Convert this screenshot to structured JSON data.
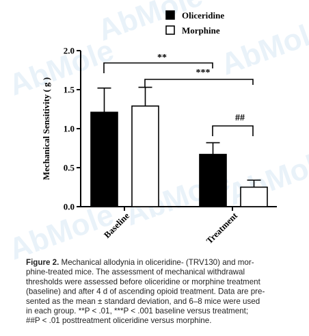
{
  "chart_data": {
    "type": "bar",
    "ylabel": "Mechanical Sensitivity ( g )",
    "categories": [
      "Baseline",
      "Treatment"
    ],
    "series": [
      {
        "name": "Oliceridine",
        "color": "#000000",
        "values": [
          1.21,
          0.67
        ],
        "errors": [
          0.31,
          0.15
        ]
      },
      {
        "name": "Morphine",
        "color": "#ffffff",
        "values": [
          1.29,
          0.25
        ],
        "errors": [
          0.24,
          0.09
        ]
      }
    ],
    "ylim": [
      0,
      2
    ],
    "yticks": [
      {
        "value": 0,
        "label": "0.0"
      },
      0.5,
      {
        "value": 1,
        "label": "1.0"
      },
      1.5,
      {
        "value": 2,
        "label": "2.0"
      }
    ],
    "annotations": [
      "**",
      "***",
      "##"
    ],
    "legend": "top-right"
  },
  "caption": {
    "label": "Figure 2.",
    "lines": [
      " Mechanical allodynia in oliceridine- (TRV130) and mor-",
      "phine-treated mice. The assessment of mechanical withdrawal",
      "thresholds were assessed before oliceridine or morphine treatment",
      "(baseline) and after 4 d of ascending opioid treatment. Data are pre-",
      "sented as the mean ± standard deviation, and 6–8 mice were used",
      "in each group. **P < .01, ***P < .001 baseline versus treatment;",
      "##P < .01 posttreatment oliceridine versus morphine."
    ]
  },
  "watermark": "AbMole"
}
